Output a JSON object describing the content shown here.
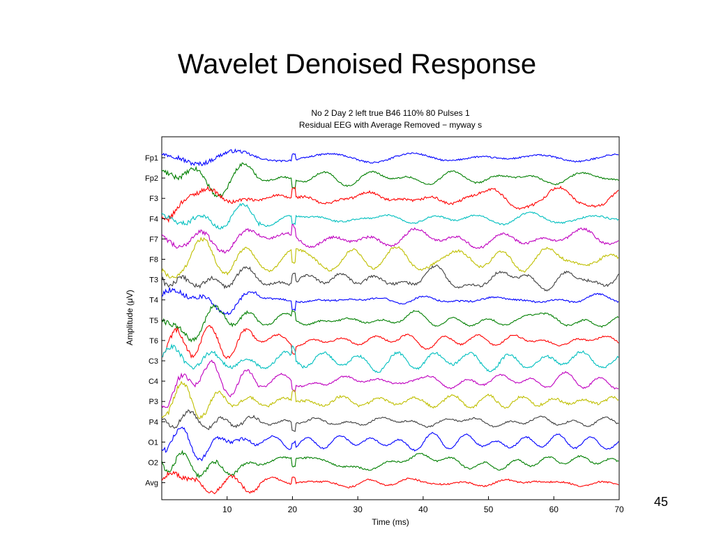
{
  "slide": {
    "title": "Wavelet Denoised Response",
    "page_number": "45"
  },
  "chart_data": {
    "type": "line",
    "title": "No 2 Day 2 left true B46 110% 80 Pulses 1",
    "subtitle": "Residual EEG with Average Removed − myway s",
    "xlabel": "Time (ms)",
    "ylabel": "Amplitude (μV)",
    "xlim": [
      0,
      70
    ],
    "xticks": [
      10,
      20,
      30,
      40,
      50,
      60,
      70
    ],
    "grid": false,
    "legend": "none",
    "channels": [
      {
        "name": "Fp1",
        "color": "#0000ff"
      },
      {
        "name": "Fp2",
        "color": "#007f00"
      },
      {
        "name": "F3",
        "color": "#ff0000"
      },
      {
        "name": "F4",
        "color": "#00bfbf"
      },
      {
        "name": "F7",
        "color": "#bf00bf"
      },
      {
        "name": "F8",
        "color": "#bfbf00"
      },
      {
        "name": "T3",
        "color": "#3f3f3f"
      },
      {
        "name": "T4",
        "color": "#0000ff"
      },
      {
        "name": "T5",
        "color": "#007f00"
      },
      {
        "name": "T6",
        "color": "#ff0000"
      },
      {
        "name": "C3",
        "color": "#00bfbf"
      },
      {
        "name": "C4",
        "color": "#bf00bf"
      },
      {
        "name": "P3",
        "color": "#bfbf00"
      },
      {
        "name": "P4",
        "color": "#3f3f3f"
      },
      {
        "name": "O1",
        "color": "#0000ff"
      },
      {
        "name": "O2",
        "color": "#007f00"
      },
      {
        "name": "Avg",
        "color": "#ff0000"
      }
    ]
  }
}
